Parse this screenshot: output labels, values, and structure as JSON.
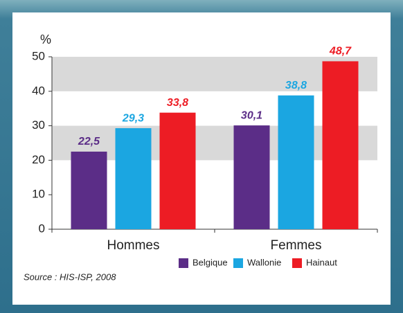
{
  "chart_data": {
    "type": "bar",
    "y_label": "%",
    "categories": [
      "Hommes",
      "Femmes"
    ],
    "series": [
      {
        "name": "Belgique",
        "color": "#5b2d87",
        "values": [
          22.5,
          30.1
        ],
        "value_labels": [
          "22,5",
          "30,1"
        ]
      },
      {
        "name": "Wallonie",
        "color": "#1ba6e1",
        "values": [
          29.3,
          38.8
        ],
        "value_labels": [
          "29,3",
          "38,8"
        ]
      },
      {
        "name": "Hainaut",
        "color": "#ed1c24",
        "values": [
          33.8,
          48.7
        ],
        "value_labels": [
          "33,8",
          "48,7"
        ]
      }
    ],
    "ylim": [
      0,
      50
    ],
    "yticks": [
      0,
      10,
      20,
      30,
      40,
      50
    ],
    "grid": "bands",
    "legend": "bottom-right",
    "source": "Source : HIS-ISP, 2008"
  }
}
